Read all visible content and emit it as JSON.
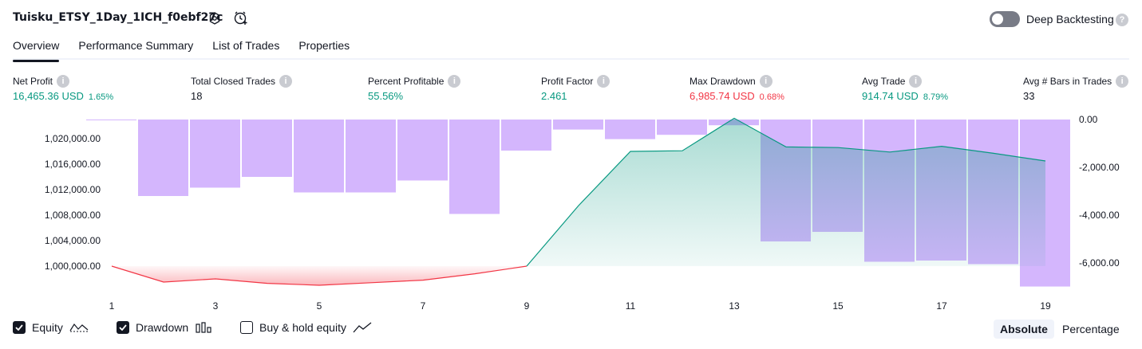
{
  "header": {
    "title": "Tuisku_ETSY_1Day_1ICH_f0ebf27c",
    "deep_backtesting_label": "Deep Backtesting",
    "deep_backtesting_on": false
  },
  "tabs": [
    "Overview",
    "Performance Summary",
    "List of Trades",
    "Properties"
  ],
  "metrics": [
    {
      "label": "Net Profit",
      "value": "16,465.36 USD",
      "pct": "1.65%",
      "color": "#089981"
    },
    {
      "label": "Total Closed Trades",
      "value": "18",
      "pct": "",
      "color": "#131722"
    },
    {
      "label": "Percent Profitable",
      "value": "55.56%",
      "pct": "",
      "color": "#089981"
    },
    {
      "label": "Profit Factor",
      "value": "2.461",
      "pct": "",
      "color": "#089981"
    },
    {
      "label": "Max Drawdown",
      "value": "6,985.74 USD",
      "pct": "0.68%",
      "color": "#f23645"
    },
    {
      "label": "Avg Trade",
      "value": "914.74 USD",
      "pct": "8.79%",
      "color": "#089981"
    },
    {
      "label": "Avg # Bars in Trades",
      "value": "33",
      "pct": "",
      "color": "#131722"
    }
  ],
  "chart_data": {
    "type": "line",
    "x": [
      1,
      2,
      3,
      4,
      5,
      6,
      7,
      8,
      9,
      10,
      11,
      12,
      13,
      14,
      15,
      16,
      17,
      18,
      19
    ],
    "x_tick_labels": [
      "1",
      "3",
      "5",
      "7",
      "9",
      "11",
      "13",
      "15",
      "17",
      "19"
    ],
    "left_axis": {
      "ticks": [
        "1,000,000.00",
        "1,004,000.00",
        "1,008,000.00",
        "1,012,000.00",
        "1,016,000.00",
        "1,020,000.00"
      ],
      "ylim": [
        998000,
        1022000
      ]
    },
    "right_axis": {
      "ticks": [
        "0.00",
        "-2,000.00",
        "-4,000.00",
        "-6,000.00"
      ],
      "ylim": [
        -7000,
        0
      ]
    },
    "series": [
      {
        "name": "Equity",
        "axis": "left",
        "values": [
          1000000,
          997500,
          998000,
          997300,
          997000,
          997400,
          997800,
          998800,
          1000000,
          1009500,
          1018000,
          1018100,
          1023200,
          1018700,
          1018600,
          1017900,
          1018800,
          1017700,
          1016500
        ]
      },
      {
        "name": "Drawdown",
        "axis": "right",
        "values": [
          0,
          -3200,
          -2850,
          -2400,
          -3050,
          -3050,
          -2550,
          -3950,
          -1300,
          -420,
          -820,
          -640,
          -240,
          -5100,
          -4700,
          -5950,
          -5900,
          -6050,
          -6986
        ]
      }
    ],
    "colors": {
      "equity_up": "#089981",
      "equity_down": "#f23645",
      "drawdown": "#c59efc"
    }
  },
  "legend": {
    "equity_label": "Equity",
    "drawdown_label": "Drawdown",
    "buy_hold_label": "Buy & hold equity",
    "equity_checked": true,
    "drawdown_checked": true,
    "buy_hold_checked": false
  },
  "mode": {
    "absolute_label": "Absolute",
    "percentage_label": "Percentage",
    "selected": "Absolute"
  }
}
